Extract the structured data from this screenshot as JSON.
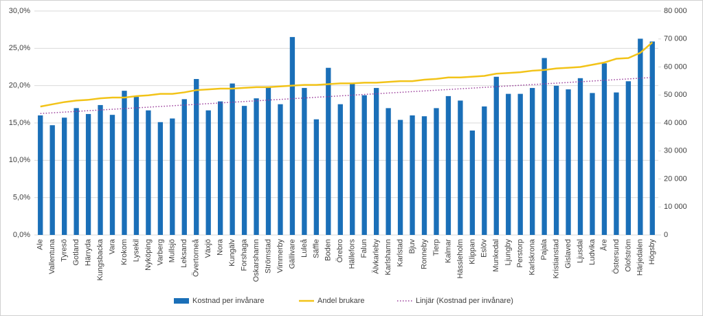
{
  "chart_data": {
    "type": "bar_line",
    "categories": [
      "Ale",
      "Vallentuna",
      "Tyresö",
      "Gotland",
      "Härryda",
      "Kungsbacka",
      "Vara",
      "Krokom",
      "Lysekil",
      "Nyköping",
      "Varberg",
      "Mullsjö",
      "Leksand",
      "Övertorneå",
      "Växjö",
      "Nora",
      "Kungälv",
      "Forshaga",
      "Oskarshamn",
      "Strömstad",
      "Vimmerby",
      "Gällivare",
      "Luleå",
      "Säffle",
      "Boden",
      "Örebro",
      "Hällefors",
      "Falun",
      "Älvkarleby",
      "Karlshamn",
      "Karlstad",
      "Bjuv",
      "Ronneby",
      "Tierp",
      "Kalmar",
      "Hässleholm",
      "Klippan",
      "Eslöv",
      "Munkedal",
      "Ljungby",
      "Perstorp",
      "Karlskrona",
      "Pajala",
      "Kristianstad",
      "Gislaved",
      "Ljusdal",
      "Ludvika",
      "Åre",
      "Östersund",
      "Olofström",
      "Härjedalen",
      "Högsby"
    ],
    "series": [
      {
        "name": "Kostnad per invånare",
        "type": "bar",
        "axis": "y2",
        "color": "#1a6fb8",
        "values": [
          42700,
          39200,
          41900,
          45300,
          43200,
          46400,
          42900,
          51500,
          49300,
          44500,
          40300,
          41600,
          48500,
          55700,
          44500,
          47700,
          54100,
          46100,
          48800,
          52800,
          46700,
          70700,
          52500,
          41300,
          59700,
          46700,
          54100,
          49900,
          52500,
          45300,
          41100,
          42700,
          42400,
          45300,
          49600,
          48000,
          37300,
          45900,
          56500,
          50400,
          50400,
          52500,
          63200,
          53300,
          52000,
          56000,
          50700,
          61300,
          50900,
          54900,
          70100,
          69100
        ]
      },
      {
        "name": "Andel brukare",
        "type": "line",
        "axis": "y",
        "color": "#f2c318",
        "values": [
          17.2,
          17.5,
          17.8,
          18.0,
          18.1,
          18.3,
          18.4,
          18.4,
          18.6,
          18.7,
          18.9,
          18.9,
          19.1,
          19.4,
          19.5,
          19.6,
          19.6,
          19.7,
          19.8,
          19.8,
          19.9,
          20.0,
          20.1,
          20.1,
          20.2,
          20.3,
          20.3,
          20.4,
          20.4,
          20.5,
          20.6,
          20.6,
          20.8,
          20.9,
          21.1,
          21.1,
          21.2,
          21.3,
          21.6,
          21.7,
          21.8,
          22.0,
          22.1,
          22.3,
          22.4,
          22.5,
          22.8,
          23.1,
          23.6,
          23.7,
          24.4,
          25.8
        ]
      },
      {
        "name": "Linjär (Kostnad per invånare)",
        "type": "trendline",
        "axis": "y2",
        "color": "#9a3c9a"
      }
    ],
    "ylim": [
      0,
      30
    ],
    "yticks": [
      {
        "value": 0,
        "label": "0,0%"
      },
      {
        "value": 5,
        "label": "5,0%"
      },
      {
        "value": 10,
        "label": "10,0%"
      },
      {
        "value": 15,
        "label": "15,0%"
      },
      {
        "value": 20,
        "label": "20,0%"
      },
      {
        "value": 25,
        "label": "25,0%"
      },
      {
        "value": 30,
        "label": "30,0%"
      }
    ],
    "y2lim": [
      0,
      80000
    ],
    "y2ticks": [
      0,
      {
        "value": 10000,
        "label": "10 000"
      },
      {
        "value": 20000,
        "label": "20 000"
      },
      {
        "value": 30000,
        "label": "30 000"
      },
      {
        "value": 40000,
        "label": "40 000"
      },
      {
        "value": 50000,
        "label": "50 000"
      },
      {
        "value": 60000,
        "label": "60 000"
      },
      {
        "value": 70000,
        "label": "70 000"
      },
      {
        "value": 80000,
        "label": "80 000"
      }
    ],
    "grid": true,
    "legend": "bottom"
  }
}
